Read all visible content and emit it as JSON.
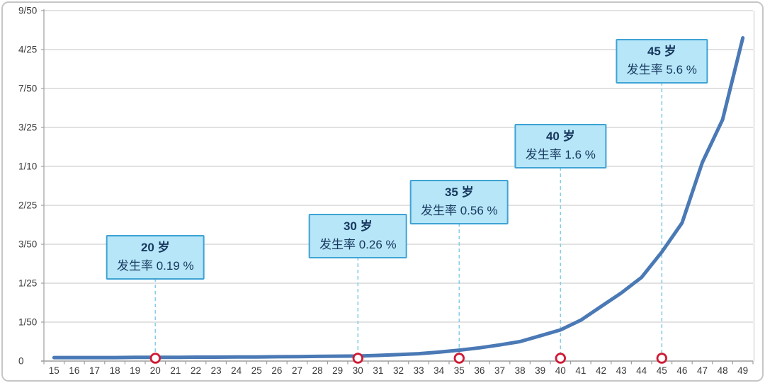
{
  "chart_data": {
    "type": "line",
    "x_label_unit": "age (岁)",
    "x_ticks": [
      15,
      16,
      17,
      18,
      19,
      20,
      21,
      22,
      23,
      24,
      25,
      26,
      27,
      28,
      29,
      30,
      31,
      32,
      33,
      34,
      35,
      36,
      37,
      38,
      39,
      40,
      41,
      42,
      43,
      44,
      45,
      46,
      47,
      48,
      49
    ],
    "series": [
      {
        "name": "发生率",
        "values_percent": [
          0.18,
          0.18,
          0.18,
          0.18,
          0.19,
          0.19,
          0.19,
          0.2,
          0.2,
          0.21,
          0.21,
          0.22,
          0.23,
          0.24,
          0.25,
          0.26,
          0.29,
          0.33,
          0.38,
          0.46,
          0.56,
          0.68,
          0.83,
          1.0,
          1.3,
          1.6,
          2.1,
          2.8,
          3.5,
          4.3,
          5.6,
          7.1,
          10.2,
          12.4,
          16.6
        ]
      }
    ],
    "ylim": [
      0,
      0.18
    ],
    "y_ticks": [
      {
        "label": "0",
        "value": 0.0
      },
      {
        "label": "1/50",
        "value": 0.02
      },
      {
        "label": "1/25",
        "value": 0.04
      },
      {
        "label": "3/50",
        "value": 0.06
      },
      {
        "label": "2/25",
        "value": 0.08
      },
      {
        "label": "1/10",
        "value": 0.1
      },
      {
        "label": "3/25",
        "value": 0.12
      },
      {
        "label": "7/50",
        "value": 0.14
      },
      {
        "label": "4/25",
        "value": 0.16
      },
      {
        "label": "9/50",
        "value": 0.18
      }
    ],
    "grid": "horizontal",
    "legend": "none",
    "annotations": [
      {
        "age": 20,
        "rate_percent": 0.19,
        "title": "20 岁",
        "label": "发生率 0.19 %"
      },
      {
        "age": 30,
        "rate_percent": 0.26,
        "title": "30 岁",
        "label": "发生率 0.26 %"
      },
      {
        "age": 35,
        "rate_percent": 0.56,
        "title": "35 岁",
        "label": "发生率 0.56 %"
      },
      {
        "age": 40,
        "rate_percent": 1.6,
        "title": "40 岁",
        "label": "发生率 1.6 %"
      },
      {
        "age": 45,
        "rate_percent": 5.6,
        "title": "45 岁",
        "label": "发生率 5.6 %"
      }
    ]
  },
  "colors": {
    "curve": "#4a79b5",
    "marker_ring": "#cf1b35",
    "marker_fill": "#ffffff",
    "dashed_line": "#85cfe6",
    "callout_fill": "#b6e6f7",
    "callout_border": "#3ea3d4",
    "callout_text": "#17375e",
    "gridline": "#c4c4c4",
    "axis_line": "#9e9e9e",
    "axis_text": "#3a3a3a",
    "frame_border": "#c6c6c6"
  }
}
